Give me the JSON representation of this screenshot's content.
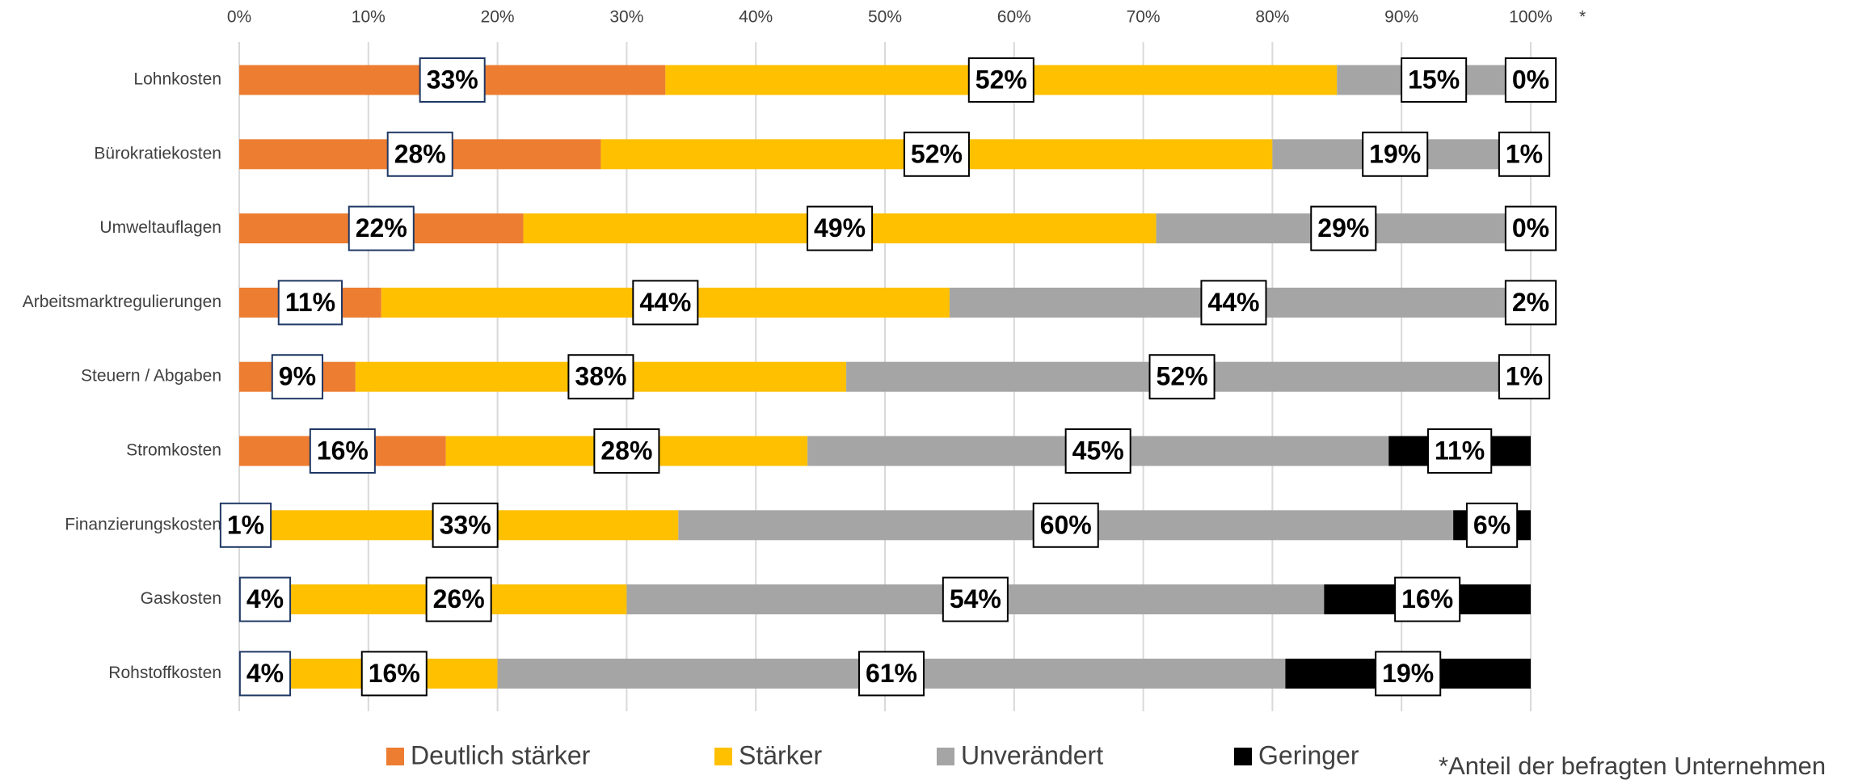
{
  "chart_data": {
    "type": "stacked_barh",
    "categories": [
      "Lohnkosten",
      "Bürokratiekosten",
      "Umweltauflagen",
      "Arbeitsmarktregulierungen",
      "Steuern / Abgaben",
      "Stromkosten",
      "Finanzierungskosten",
      "Gaskosten",
      "Rohstoffkosten"
    ],
    "series": [
      {
        "name": "Deutlich stärker",
        "color": "#ed7d31",
        "values": [
          33,
          28,
          22,
          11,
          9,
          16,
          1,
          4,
          4
        ],
        "value_labels": [
          "33%",
          "28%",
          "22%",
          "11%",
          "9%",
          "16%",
          "1%",
          "4%",
          "4%"
        ]
      },
      {
        "name": "Stärker",
        "color": "#ffc000",
        "values": [
          52,
          52,
          49,
          44,
          38,
          28,
          33,
          26,
          16
        ],
        "value_labels": [
          "52%",
          "52%",
          "49%",
          "44%",
          "38%",
          "28%",
          "33%",
          "26%",
          "16%"
        ]
      },
      {
        "name": "Unverändert",
        "color": "#a5a5a5",
        "values": [
          15,
          19,
          29,
          44,
          52,
          45,
          60,
          54,
          61
        ],
        "value_labels": [
          "15%",
          "19%",
          "29%",
          "44%",
          "52%",
          "45%",
          "60%",
          "54%",
          "61%"
        ]
      },
      {
        "name": "Geringer",
        "color": "#000000",
        "values": [
          0,
          1,
          0,
          2,
          1,
          11,
          6,
          16,
          19
        ],
        "value_labels": [
          "0%",
          "1%",
          "0%",
          "2%",
          "1%",
          "11%",
          "6%",
          "16%",
          "19%"
        ]
      }
    ],
    "xlim": [
      0,
      100
    ],
    "xticks": [
      {
        "value": 0,
        "label": "0%"
      },
      {
        "value": 10,
        "label": "10%"
      },
      {
        "value": 20,
        "label": "20%"
      },
      {
        "value": 30,
        "label": "30%"
      },
      {
        "value": 40,
        "label": "40%"
      },
      {
        "value": 50,
        "label": "50%"
      },
      {
        "value": 60,
        "label": "60%"
      },
      {
        "value": 70,
        "label": "70%"
      },
      {
        "value": 80,
        "label": "80%"
      },
      {
        "value": 90,
        "label": "90%"
      },
      {
        "value": 100,
        "label": "100%"
      }
    ],
    "grid": true,
    "legend": "bottom",
    "axis_note": "*",
    "footnote": "*Anteil der befragten Unternehmen"
  }
}
